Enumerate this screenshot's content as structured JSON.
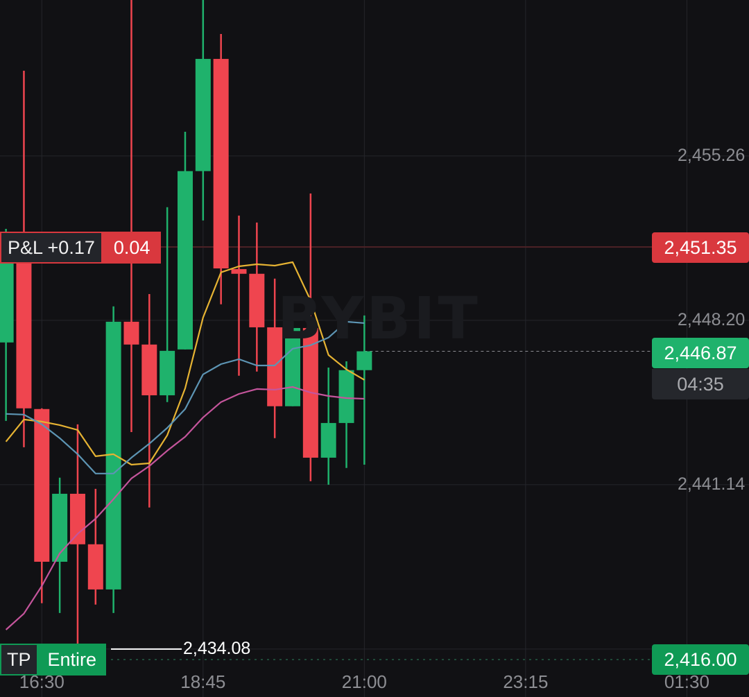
{
  "watermark": "BYBIT",
  "colors": {
    "up": "#1fb26c",
    "down": "#ef454f",
    "ma_fast": "#e6b333",
    "ma_mid": "#5d95b4",
    "ma_slow": "#c5559c",
    "grid": "#25262b",
    "background": "#111114"
  },
  "chart_data": {
    "type": "candlestick",
    "interval": "15m",
    "xlim": [
      "15:55",
      "02:22"
    ],
    "ylim": [
      2432.02,
      2461.96
    ],
    "grid": true,
    "x_ticks": [
      "16:30",
      "18:45",
      "21:00",
      "23:15",
      "01:30"
    ],
    "y_ticks": [
      "2,455.26",
      "2,448.20",
      "2,441.14"
    ],
    "candles": [
      {
        "t": "16:00",
        "o": 2447.25,
        "h": 2452.13,
        "l": 2443.88,
        "c": 2451.83
      },
      {
        "t": "16:15",
        "o": 2451.69,
        "h": 2458.92,
        "l": 2442.75,
        "c": 2444.42
      },
      {
        "t": "16:30",
        "o": 2444.39,
        "h": 2444.42,
        "l": 2436.05,
        "c": 2437.83
      },
      {
        "t": "16:45",
        "o": 2437.83,
        "h": 2441.44,
        "l": 2435.63,
        "c": 2440.75
      },
      {
        "t": "17:00",
        "o": 2440.75,
        "h": 2443.73,
        "l": 2434.11,
        "c": 2438.58
      },
      {
        "t": "17:15",
        "o": 2438.58,
        "h": 2440.96,
        "l": 2435.99,
        "c": 2436.64
      },
      {
        "t": "17:30",
        "o": 2436.64,
        "h": 2448.8,
        "l": 2435.63,
        "c": 2448.14
      },
      {
        "t": "17:45",
        "o": 2448.14,
        "h": 2462.0,
        "l": 2443.4,
        "c": 2447.16
      },
      {
        "t": "18:00",
        "o": 2447.16,
        "h": 2449.33,
        "l": 2440.16,
        "c": 2444.98
      },
      {
        "t": "18:15",
        "o": 2444.98,
        "h": 2453.06,
        "l": 2444.69,
        "c": 2446.89
      },
      {
        "t": "18:30",
        "o": 2446.95,
        "h": 2456.3,
        "l": 2446.95,
        "c": 2454.61
      },
      {
        "t": "18:45",
        "o": 2454.61,
        "h": 2462.5,
        "l": 2452.49,
        "c": 2459.43
      },
      {
        "t": "19:00",
        "o": 2459.43,
        "h": 2460.5,
        "l": 2448.89,
        "c": 2450.43
      },
      {
        "t": "19:15",
        "o": 2450.4,
        "h": 2452.7,
        "l": 2445.82,
        "c": 2450.2
      },
      {
        "t": "19:30",
        "o": 2450.2,
        "h": 2452.4,
        "l": 2446.0,
        "c": 2447.9
      },
      {
        "t": "19:45",
        "o": 2447.9,
        "h": 2449.99,
        "l": 2443.14,
        "c": 2444.51
      },
      {
        "t": "20:00",
        "o": 2444.51,
        "h": 2449.18,
        "l": 2444.51,
        "c": 2447.87
      },
      {
        "t": "20:15",
        "o": 2447.87,
        "h": 2453.65,
        "l": 2441.29,
        "c": 2442.3
      },
      {
        "t": "20:30",
        "o": 2442.3,
        "h": 2446.17,
        "l": 2441.14,
        "c": 2443.79
      },
      {
        "t": "20:45",
        "o": 2443.79,
        "h": 2446.44,
        "l": 2441.86,
        "c": 2446.06
      },
      {
        "t": "21:00",
        "o": 2446.06,
        "h": 2448.41,
        "l": 2442.0,
        "c": 2446.87
      }
    ],
    "moving_averages": [
      {
        "color": "#e6b333",
        "values": [
          2442.99,
          2443.94,
          2443.85,
          2443.7,
          2443.49,
          2442.36,
          2442.45,
          2442.0,
          2442.06,
          2443.26,
          2445.28,
          2448.32,
          2450.26,
          2450.52,
          2450.61,
          2450.55,
          2450.7,
          2449.06,
          2446.71,
          2446.09,
          2445.64
        ]
      },
      {
        "color": "#5d95b4",
        "values": [
          2444.18,
          2444.15,
          2443.73,
          2443.14,
          2442.45,
          2441.62,
          2441.62,
          2442.3,
          2442.9,
          2443.58,
          2444.39,
          2445.88,
          2446.32,
          2446.53,
          2446.26,
          2446.26,
          2446.98,
          2447.13,
          2447.46,
          2448.14,
          2448.08
        ]
      },
      {
        "color": "#c5559c",
        "values": [
          2434.91,
          2435.6,
          2436.79,
          2438.19,
          2439.03,
          2439.68,
          2440.52,
          2441.41,
          2441.94,
          2442.6,
          2443.2,
          2444.03,
          2444.69,
          2445.04,
          2445.25,
          2445.22,
          2445.34,
          2445.1,
          2444.95,
          2444.86,
          2444.83
        ]
      }
    ],
    "price_lines": {
      "entry": {
        "price": 2451.35,
        "label": "2,451.35"
      },
      "last": {
        "price": 2446.87,
        "label": "2,446.87",
        "countdown": "04:35"
      },
      "take_profit": {
        "price": 2434.08,
        "label": "2,434.08"
      },
      "liquidation": {
        "label": "2,416.00"
      }
    }
  },
  "position": {
    "pnl_label": "P&L +0.17",
    "qty": "0.04"
  },
  "take_profit_tag": {
    "tp": "TP",
    "scope": "Entire",
    "price": "2,434.08"
  }
}
